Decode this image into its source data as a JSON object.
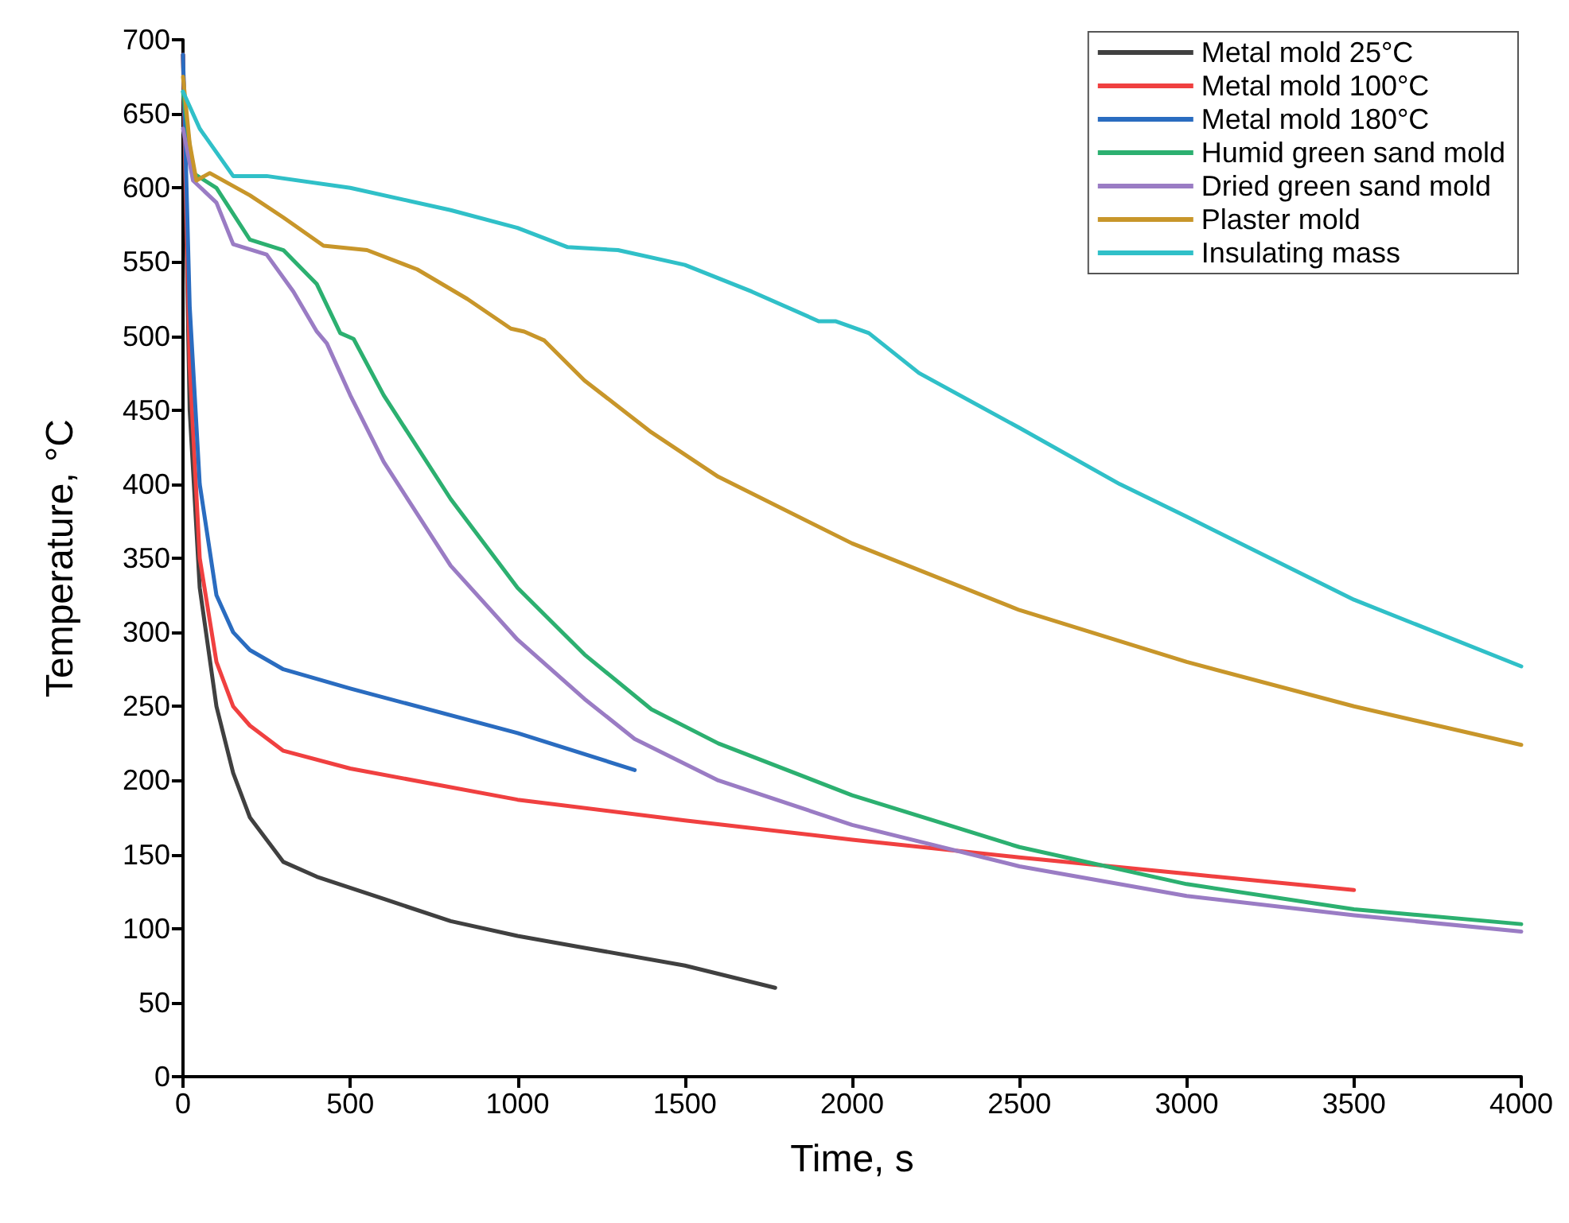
{
  "chart_data": {
    "type": "line",
    "xlabel": "Time, s",
    "ylabel": "Temperature, °C",
    "xlim": [
      0,
      4000
    ],
    "xticks": [
      0,
      500,
      1000,
      1500,
      2000,
      2500,
      3000,
      3500,
      4000
    ],
    "ylim": [
      0,
      700
    ],
    "yticks": [
      0,
      50,
      100,
      150,
      200,
      250,
      300,
      350,
      400,
      450,
      500,
      550,
      600,
      650,
      700
    ],
    "grid": false,
    "legend": "top right",
    "marker": "none",
    "line_style": "solid",
    "series": [
      {
        "name": "Metal mold 25°C",
        "color": "#404040",
        "x": [
          0,
          20,
          50,
          100,
          150,
          200,
          300,
          400,
          600,
          800,
          1000,
          1200,
          1500,
          1770
        ],
        "values": [
          690,
          450,
          330,
          250,
          205,
          175,
          145,
          135,
          120,
          105,
          95,
          87,
          75,
          60
        ]
      },
      {
        "name": "Metal mold 100°C",
        "color": "#f04040",
        "x": [
          0,
          20,
          50,
          100,
          150,
          200,
          300,
          500,
          1000,
          1500,
          2000,
          2500,
          3000,
          3500
        ],
        "values": [
          690,
          480,
          350,
          280,
          250,
          237,
          220,
          208,
          187,
          173,
          160,
          148,
          137,
          126
        ]
      },
      {
        "name": "Metal mold 180°C",
        "color": "#2a6cc0",
        "x": [
          0,
          20,
          50,
          100,
          150,
          200,
          300,
          500,
          1000,
          1350
        ],
        "values": [
          690,
          520,
          400,
          325,
          300,
          288,
          275,
          262,
          232,
          207
        ]
      },
      {
        "name": "Humid green sand mold",
        "color": "#2cb070",
        "x": [
          0,
          30,
          100,
          200,
          300,
          400,
          470,
          510,
          600,
          800,
          1000,
          1200,
          1400,
          1600,
          2000,
          2500,
          3000,
          3500,
          4000
        ],
        "values": [
          665,
          610,
          600,
          565,
          558,
          535,
          502,
          498,
          460,
          390,
          330,
          285,
          248,
          225,
          190,
          155,
          130,
          113,
          103
        ]
      },
      {
        "name": "Dried green sand mold",
        "color": "#9a7cc4",
        "x": [
          0,
          30,
          100,
          150,
          250,
          330,
          400,
          430,
          500,
          600,
          800,
          1000,
          1200,
          1350,
          1600,
          2000,
          2500,
          3000,
          3500,
          4000
        ],
        "values": [
          640,
          605,
          590,
          562,
          555,
          530,
          503,
          495,
          460,
          415,
          345,
          295,
          255,
          228,
          200,
          170,
          142,
          122,
          109,
          98
        ]
      },
      {
        "name": "Plaster mold",
        "color": "#c8962a",
        "x": [
          0,
          20,
          40,
          80,
          200,
          300,
          420,
          550,
          700,
          850,
          980,
          1020,
          1080,
          1200,
          1400,
          1600,
          2000,
          2500,
          3000,
          3500,
          4000
        ],
        "values": [
          675,
          630,
          605,
          610,
          595,
          580,
          561,
          558,
          545,
          525,
          505,
          503,
          497,
          470,
          435,
          405,
          360,
          315,
          280,
          250,
          224
        ]
      },
      {
        "name": "Insulating mass",
        "color": "#30c0c8",
        "x": [
          0,
          50,
          150,
          250,
          500,
          800,
          1000,
          1150,
          1300,
          1500,
          1700,
          1900,
          1950,
          2050,
          2200,
          2500,
          2800,
          3000,
          3500,
          4000
        ],
        "values": [
          665,
          640,
          608,
          608,
          600,
          585,
          573,
          560,
          558,
          548,
          530,
          510,
          510,
          502,
          475,
          438,
          400,
          378,
          322,
          277
        ]
      }
    ]
  }
}
